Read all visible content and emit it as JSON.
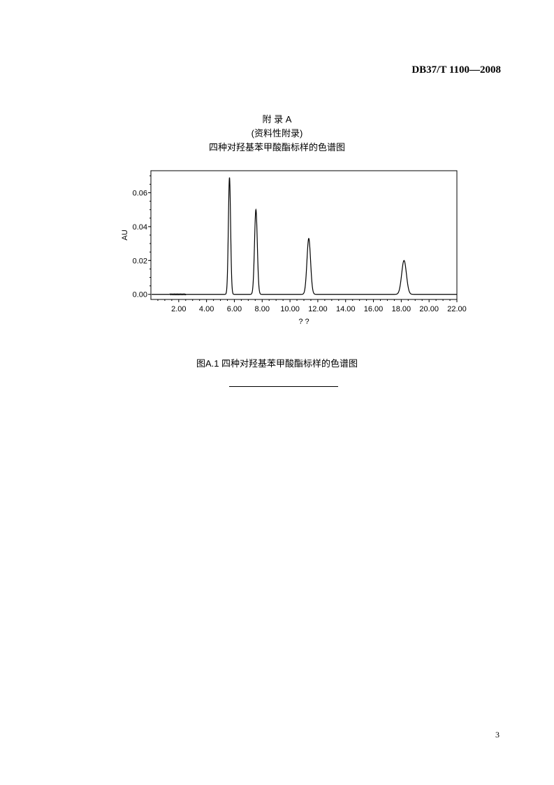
{
  "header": {
    "standard_number": "DB37/T 1100—2008"
  },
  "appendix": {
    "title": "附 录 A",
    "subtitle": "(资料性附录)",
    "heading": "四种对羟基苯甲酸酯标样的色谱图"
  },
  "figure_caption": "图A.1 四种对羟基苯甲酸酯标样的色谱图",
  "page_number": "3",
  "chart_data": {
    "type": "line",
    "xlabel": "? ?",
    "ylabel": "AU",
    "xlim": [
      0,
      22
    ],
    "ylim": [
      -0.003,
      0.073
    ],
    "xticks": [
      "2.00",
      "4.00",
      "6.00",
      "8.00",
      "10.00",
      "12.00",
      "14.00",
      "16.00",
      "18.00",
      "20.00",
      "22.00"
    ],
    "yticks": [
      "0.00",
      "0.02",
      "0.04",
      "0.06"
    ],
    "grid": false,
    "peaks": [
      {
        "retention_time": 5.65,
        "height": 0.069
      },
      {
        "retention_time": 7.55,
        "height": 0.05
      },
      {
        "retention_time": 11.35,
        "height": 0.033
      },
      {
        "retention_time": 18.2,
        "height": 0.02
      }
    ]
  }
}
